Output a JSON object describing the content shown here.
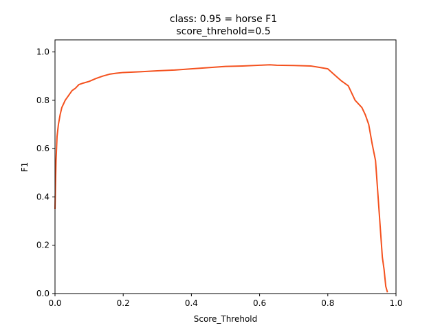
{
  "chart_data": {
    "type": "line",
    "title": "class: 0.95 = horse F1",
    "subtitle": "score_threhold=0.5",
    "xlabel": "Score_Threhold",
    "ylabel": "F1",
    "xlim": [
      0.0,
      1.0
    ],
    "ylim": [
      0.0,
      1.05
    ],
    "xticks": [
      "0.0",
      "0.2",
      "0.4",
      "0.6",
      "0.8",
      "1.0"
    ],
    "yticks": [
      "0.0",
      "0.2",
      "0.4",
      "0.6",
      "0.8",
      "1.0"
    ],
    "grid": false,
    "series": [
      {
        "color": "#f4511e",
        "x": [
          0.0,
          0.003,
          0.006,
          0.01,
          0.015,
          0.02,
          0.03,
          0.04,
          0.05,
          0.06,
          0.07,
          0.08,
          0.1,
          0.12,
          0.14,
          0.16,
          0.18,
          0.2,
          0.25,
          0.3,
          0.35,
          0.4,
          0.45,
          0.5,
          0.55,
          0.6,
          0.63,
          0.65,
          0.7,
          0.75,
          0.78,
          0.8,
          0.82,
          0.84,
          0.86,
          0.88,
          0.9,
          0.91,
          0.92,
          0.93,
          0.94,
          0.945,
          0.95,
          0.955,
          0.96,
          0.965,
          0.97,
          0.975
        ],
        "y": [
          0.35,
          0.55,
          0.65,
          0.7,
          0.74,
          0.77,
          0.8,
          0.82,
          0.84,
          0.85,
          0.865,
          0.87,
          0.878,
          0.89,
          0.9,
          0.908,
          0.912,
          0.915,
          0.918,
          0.922,
          0.925,
          0.93,
          0.935,
          0.94,
          0.942,
          0.945,
          0.947,
          0.945,
          0.944,
          0.942,
          0.935,
          0.93,
          0.905,
          0.88,
          0.86,
          0.8,
          0.77,
          0.74,
          0.7,
          0.62,
          0.55,
          0.45,
          0.35,
          0.25,
          0.15,
          0.1,
          0.03,
          0.005
        ]
      }
    ]
  }
}
